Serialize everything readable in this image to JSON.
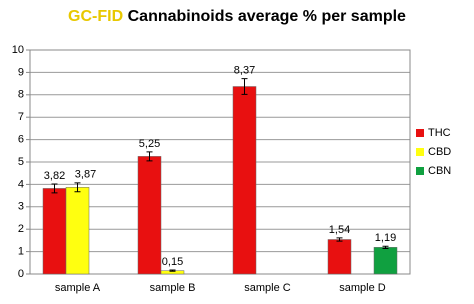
{
  "chart_data": {
    "type": "bar",
    "title_highlight": "GC-FID",
    "title_highlight_color": "#e8c800",
    "title": "Cannabinoids average % per sample",
    "categories": [
      "sample A",
      "sample B",
      "sample C",
      "sample D"
    ],
    "series": [
      {
        "name": "THC",
        "color": "#e81010",
        "values": [
          3.82,
          5.25,
          8.37,
          1.54
        ],
        "value_labels": [
          "3,82",
          "5,25",
          "8,37",
          "1,54"
        ],
        "errors": [
          0.2,
          0.2,
          0.35,
          0.07
        ]
      },
      {
        "name": "CBD",
        "color": "#ffff10",
        "values": [
          3.87,
          0.15,
          null,
          null
        ],
        "value_labels": [
          "3,87",
          "0,15",
          null,
          null
        ],
        "errors": [
          0.2,
          0.03,
          null,
          null
        ]
      },
      {
        "name": "CBN",
        "color": "#10a040",
        "values": [
          null,
          null,
          null,
          1.19
        ],
        "value_labels": [
          null,
          null,
          null,
          "1,19"
        ],
        "errors": [
          null,
          null,
          null,
          0.05
        ]
      }
    ],
    "ylim": [
      0,
      10
    ],
    "yticks": [
      0,
      1,
      2,
      3,
      4,
      5,
      6,
      7,
      8,
      9,
      10
    ],
    "grid": true,
    "legend": "right"
  }
}
